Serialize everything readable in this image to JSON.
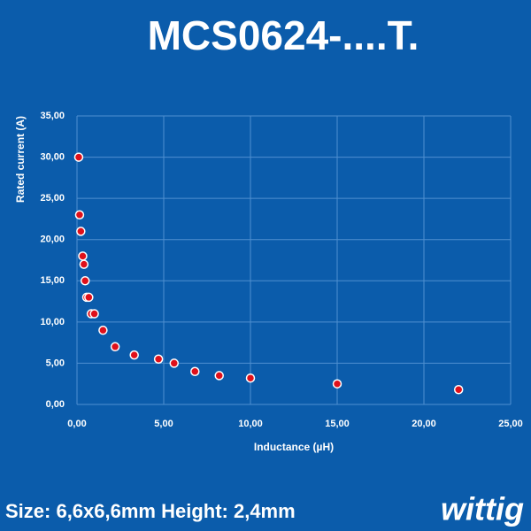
{
  "chart_data": {
    "type": "scatter",
    "title": "MCS0624-....T.",
    "x_label": "Inductance (µH)",
    "y_label": "Rated current (A)",
    "x": [
      0.1,
      0.15,
      0.22,
      0.33,
      0.4,
      0.47,
      0.56,
      0.68,
      0.82,
      1.0,
      1.5,
      2.2,
      3.3,
      4.7,
      5.6,
      6.8,
      8.2,
      10,
      15,
      22
    ],
    "series": [
      {
        "color": "#e0101a",
        "values": [
          30,
          23,
          21,
          18,
          17,
          15,
          13,
          13,
          11,
          11,
          9,
          7,
          6,
          5.5,
          5,
          4,
          3.5,
          3.2,
          2.5,
          1.8
        ]
      }
    ],
    "xlim": [
      0,
      25
    ],
    "ylim": [
      0,
      35
    ],
    "xticks": [
      {
        "value": 0,
        "label": "0,00"
      },
      {
        "value": 5,
        "label": "5,00"
      },
      {
        "value": 10,
        "label": "10,00"
      },
      {
        "value": 15,
        "label": "15,00"
      },
      {
        "value": 20,
        "label": "20,00"
      },
      {
        "value": 25,
        "label": "25,00"
      }
    ],
    "yticks": [
      {
        "value": 0,
        "label": "0,00"
      },
      {
        "value": 5,
        "label": "5,00"
      },
      {
        "value": 10,
        "label": "10,00"
      },
      {
        "value": 15,
        "label": "15,00"
      },
      {
        "value": 20,
        "label": "20,00"
      },
      {
        "value": 25,
        "label": "25,00"
      },
      {
        "value": 30,
        "label": "30,00"
      },
      {
        "value": 35,
        "label": "35,00"
      }
    ],
    "grid": true
  },
  "footer": {
    "text": "Size: 6,6x6,6mm Height: 2,4mm",
    "logo": "wittig"
  }
}
